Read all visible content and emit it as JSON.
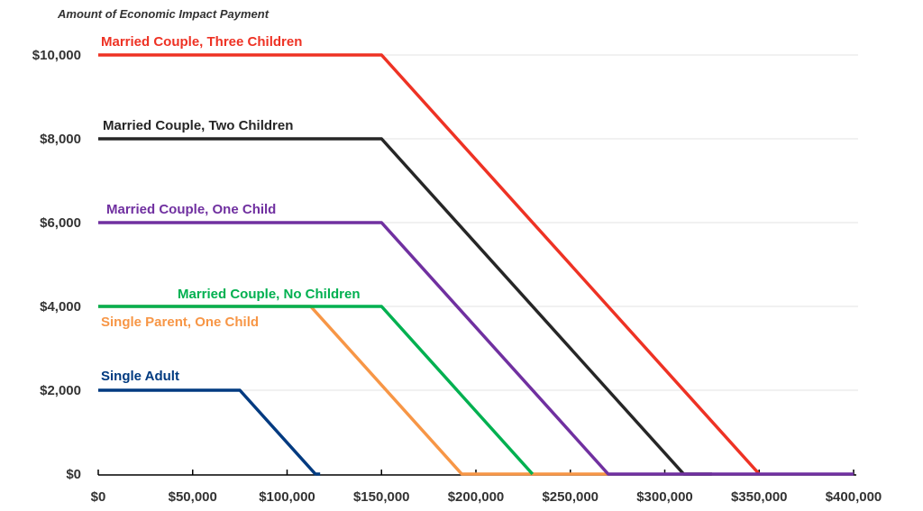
{
  "chart_data": {
    "type": "line",
    "title": "Amount of Economic Impact Payment",
    "xlabel": "",
    "ylabel": "",
    "xlim": [
      0,
      400000
    ],
    "ylim": [
      0,
      10000
    ],
    "x_ticks": [
      0,
      50000,
      100000,
      150000,
      200000,
      250000,
      300000,
      350000,
      400000
    ],
    "x_tick_labels": [
      "$0",
      "$50,000",
      "$100,000",
      "$150,000",
      "$200,000",
      "$250,000",
      "$300,000",
      "$350,000",
      "$400,000"
    ],
    "y_ticks": [
      0,
      2000,
      4000,
      6000,
      8000,
      10000
    ],
    "y_tick_labels": [
      "$0",
      "$2,000",
      "$4,000",
      "$6,000",
      "$8,000",
      "$10,000"
    ],
    "grid": "horizontal",
    "legend": "inline labels",
    "series": [
      {
        "name": "Single Parent, One Child",
        "color": "#F79646",
        "points": [
          [
            0,
            4000
          ],
          [
            112500,
            4000
          ],
          [
            192500,
            0
          ],
          [
            270000,
            0
          ]
        ]
      },
      {
        "name": "Married Couple, No Children",
        "color": "#00B050",
        "points": [
          [
            0,
            4000
          ],
          [
            150000,
            4000
          ],
          [
            230000,
            0
          ]
        ]
      },
      {
        "name": "Married Couple, Three Children",
        "color": "#EE3224",
        "points": [
          [
            0,
            10000
          ],
          [
            150000,
            10000
          ],
          [
            350000,
            0
          ]
        ]
      },
      {
        "name": "Married Couple, Two Children",
        "color": "#262626",
        "points": [
          [
            0,
            8000
          ],
          [
            150000,
            8000
          ],
          [
            310000,
            0
          ],
          [
            325000,
            0
          ]
        ]
      },
      {
        "name": "Married Couple, One Child",
        "color": "#7030A0",
        "points": [
          [
            0,
            6000
          ],
          [
            150000,
            6000
          ],
          [
            270000,
            0
          ],
          [
            400000,
            0
          ]
        ]
      },
      {
        "name": "Single Adult",
        "color": "#003A80",
        "points": [
          [
            0,
            2000
          ],
          [
            75000,
            2000
          ],
          [
            115000,
            0
          ],
          [
            117500,
            0
          ]
        ]
      }
    ]
  }
}
